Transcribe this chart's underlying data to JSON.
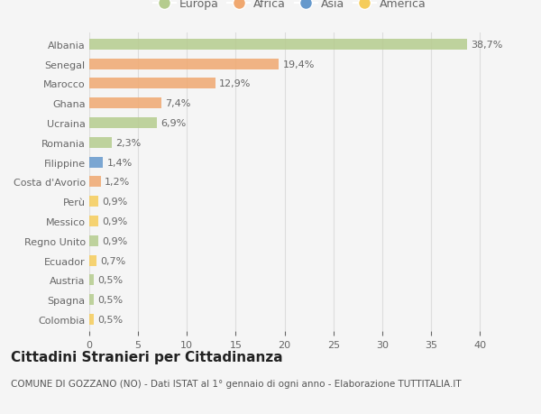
{
  "countries": [
    "Albania",
    "Senegal",
    "Marocco",
    "Ghana",
    "Ucraina",
    "Romania",
    "Filippine",
    "Costa d'Avorio",
    "Perù",
    "Messico",
    "Regno Unito",
    "Ecuador",
    "Austria",
    "Spagna",
    "Colombia"
  ],
  "values": [
    38.7,
    19.4,
    12.9,
    7.4,
    6.9,
    2.3,
    1.4,
    1.2,
    0.9,
    0.9,
    0.9,
    0.7,
    0.5,
    0.5,
    0.5
  ],
  "labels": [
    "38,7%",
    "19,4%",
    "12,9%",
    "7,4%",
    "6,9%",
    "2,3%",
    "1,4%",
    "1,2%",
    "0,9%",
    "0,9%",
    "0,9%",
    "0,7%",
    "0,5%",
    "0,5%",
    "0,5%"
  ],
  "continents": [
    "Europa",
    "Africa",
    "Africa",
    "Africa",
    "Europa",
    "Europa",
    "Asia",
    "Africa",
    "America",
    "America",
    "Europa",
    "America",
    "Europa",
    "Europa",
    "America"
  ],
  "continent_colors": {
    "Europa": "#b5cc8e",
    "Africa": "#f0a870",
    "Asia": "#6699cc",
    "America": "#f5cc5a"
  },
  "legend_order": [
    "Europa",
    "Africa",
    "Asia",
    "America"
  ],
  "background_color": "#f5f5f5",
  "grid_color": "#dddddd",
  "title": "Cittadini Stranieri per Cittadinanza",
  "subtitle": "COMUNE DI GOZZANO (NO) - Dati ISTAT al 1° gennaio di ogni anno - Elaborazione TUTTITALIA.IT",
  "xlim_max": 41,
  "xticks": [
    0,
    5,
    10,
    15,
    20,
    25,
    30,
    35,
    40
  ],
  "bar_height": 0.55,
  "font_color": "#666666",
  "label_fontsize": 8,
  "tick_fontsize": 8,
  "title_fontsize": 11,
  "subtitle_fontsize": 7.5,
  "legend_fontsize": 9
}
